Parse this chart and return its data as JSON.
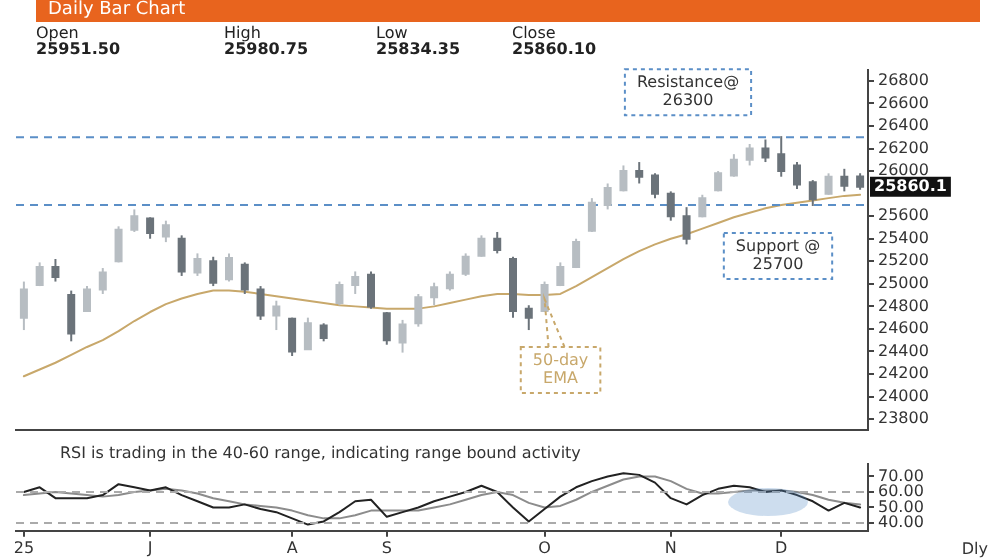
{
  "chart_data": [
    {
      "type": "candlestick",
      "title": "Daily Bar Chart",
      "colors": [
        "#b7bdc2",
        "#b7bdc2",
        "#6b737a",
        "#6b737a",
        "#b7bdc2",
        "#b7bdc2",
        "#b7bdc2",
        "#b7bdc2",
        "#6b737a",
        "#b7bdc2",
        "#6b737a",
        "#b7bdc2",
        "#6b737a",
        "#b7bdc2",
        "#6b737a",
        "#6b737a",
        "#b7bdc2",
        "#6b737a",
        "#b7bdc2",
        "#6b737a",
        "#b7bdc2",
        "#b7bdc2",
        "#6b737a",
        "#6b737a",
        "#b7bdc2",
        "#b7bdc2",
        "#b7bdc2",
        "#b7bdc2",
        "#b7bdc2",
        "#b7bdc2",
        "#6b737a",
        "#6b737a",
        "#6b737a",
        "#b7bdc2",
        "#b7bdc2",
        "#b7bdc2",
        "#b7bdc2",
        "#b7bdc2",
        "#b7bdc2",
        "#6b737a",
        "#6b737a",
        "#6b737a",
        "#6b737a",
        "#b7bdc2",
        "#b7bdc2",
        "#b7bdc2",
        "#b7bdc2",
        "#6b737a",
        "#6b737a",
        "#6b737a",
        "#6b737a",
        "#b7bdc2",
        "#6b737a",
        "#6b737a"
      ],
      "categories": [
        null,
        null,
        null,
        null,
        null,
        null,
        null,
        null,
        null,
        null,
        null,
        null,
        null,
        null,
        null,
        null,
        null,
        null,
        null,
        null,
        null,
        null,
        null,
        null,
        null,
        null,
        null,
        null,
        null,
        null,
        null,
        null,
        null,
        null,
        null,
        null,
        null,
        null,
        null,
        null,
        null,
        null,
        null,
        null,
        null,
        null,
        null,
        null,
        null,
        null,
        null,
        null,
        null,
        null
      ],
      "ohlc": [
        [
          24700,
          25020,
          24590,
          24950
        ],
        [
          24990,
          25190,
          24980,
          25150
        ],
        [
          25150,
          25220,
          25020,
          25060
        ],
        [
          24900,
          24940,
          24490,
          24560
        ],
        [
          24760,
          24980,
          24750,
          24950
        ],
        [
          24950,
          25140,
          24910,
          25100
        ],
        [
          25200,
          25510,
          25190,
          25480
        ],
        [
          25480,
          25660,
          25460,
          25600
        ],
        [
          25580,
          25590,
          25400,
          25450
        ],
        [
          25420,
          25560,
          25370,
          25520
        ],
        [
          25400,
          25430,
          25070,
          25110
        ],
        [
          25100,
          25270,
          25070,
          25220
        ],
        [
          25200,
          25240,
          24980,
          25010
        ],
        [
          25040,
          25270,
          25020,
          25230
        ],
        [
          25170,
          25190,
          24910,
          24950
        ],
        [
          24950,
          24980,
          24680,
          24720
        ],
        [
          24720,
          24850,
          24590,
          24800
        ],
        [
          24690,
          24700,
          24360,
          24400
        ],
        [
          24420,
          24700,
          24420,
          24650
        ],
        [
          24630,
          24650,
          24490,
          24520
        ],
        [
          24830,
          25020,
          24810,
          24990
        ],
        [
          24990,
          25110,
          24910,
          25060
        ],
        [
          25080,
          25110,
          24780,
          24800
        ],
        [
          24740,
          24750,
          24460,
          24500
        ],
        [
          24480,
          24680,
          24390,
          24640
        ],
        [
          24650,
          24910,
          24620,
          24880
        ],
        [
          24880,
          25010,
          24810,
          24970
        ],
        [
          24960,
          25110,
          24940,
          25080
        ],
        [
          25090,
          25270,
          25070,
          25240
        ],
        [
          25250,
          25430,
          25240,
          25400
        ],
        [
          25400,
          25460,
          25270,
          25300
        ],
        [
          25220,
          25240,
          24700,
          24760
        ],
        [
          24780,
          24810,
          24590,
          24700
        ],
        [
          24760,
          25020,
          24750,
          24990
        ],
        [
          24990,
          25190,
          24980,
          25150
        ],
        [
          25150,
          25400,
          25140,
          25370
        ],
        [
          25470,
          25760,
          25460,
          25720
        ],
        [
          25700,
          25890,
          25660,
          25850
        ],
        [
          25830,
          26050,
          25820,
          26000
        ],
        [
          26000,
          26080,
          25890,
          25950
        ],
        [
          25960,
          25980,
          25760,
          25800
        ],
        [
          25800,
          25820,
          25560,
          25600
        ],
        [
          25600,
          25680,
          25350,
          25400
        ],
        [
          25600,
          25790,
          25590,
          25760
        ],
        [
          25830,
          26000,
          25820,
          25980
        ],
        [
          25960,
          26150,
          25950,
          26100
        ],
        [
          26100,
          26240,
          26050,
          26200
        ],
        [
          26200,
          26280,
          26080,
          26120
        ],
        [
          26150,
          26310,
          25950,
          26000
        ],
        [
          26050,
          26080,
          25840,
          25880
        ],
        [
          25900,
          25920,
          25690,
          25750
        ],
        [
          25800,
          25980,
          25790,
          25950
        ],
        [
          25950,
          26020,
          25820,
          25870
        ],
        [
          25951.5,
          25980.75,
          25834.35,
          25860.1
        ]
      ],
      "series": [
        {
          "type": "line",
          "name": "50-day EMA",
          "color": "#c8a86b",
          "values": [
            24180,
            24240,
            24300,
            24370,
            24440,
            24500,
            24580,
            24670,
            24750,
            24820,
            24870,
            24910,
            24940,
            24940,
            24930,
            24910,
            24890,
            24870,
            24850,
            24830,
            24810,
            24800,
            24790,
            24780,
            24780,
            24780,
            24800,
            24830,
            24860,
            24890,
            24910,
            24910,
            24900,
            24900,
            24910,
            24980,
            25060,
            25140,
            25220,
            25290,
            25350,
            25400,
            25440,
            25490,
            25540,
            25590,
            25630,
            25670,
            25700,
            25720,
            25740,
            25760,
            25780,
            25790
          ]
        }
      ],
      "ylim": [
        23700,
        26900
      ],
      "yticks": [
        23800,
        24000,
        24200,
        24400,
        24600,
        24800,
        25000,
        25200,
        25400,
        25600,
        26000,
        26200,
        26400,
        26600,
        26800
      ],
      "ref_lines": [
        {
          "axis": "y",
          "value": 26300,
          "label": "Resistance@ 26300",
          "color": "#5b8fc7",
          "line_style": "dashed"
        },
        {
          "axis": "y",
          "value": 25700,
          "label": "Support @ 25700",
          "color": "#5b8fc7",
          "line_style": "dashed"
        }
      ],
      "annotations": [
        "Open",
        "25951.50",
        "High",
        "25980.75",
        "Low",
        "25834.35",
        "Close",
        "25860.10",
        "25860.1"
      ],
      "tick_labels": "y",
      "legend": false,
      "grid": false,
      "marker": "none"
    },
    {
      "type": "line",
      "categories": [
        "25",
        null,
        null,
        null,
        null,
        null,
        null,
        null,
        "J",
        null,
        null,
        null,
        null,
        null,
        null,
        null,
        null,
        "A",
        null,
        null,
        null,
        null,
        null,
        "S",
        null,
        null,
        null,
        null,
        null,
        null,
        null,
        null,
        null,
        "O",
        null,
        null,
        null,
        null,
        null,
        null,
        null,
        "N",
        null,
        null,
        null,
        null,
        null,
        null,
        "D",
        null,
        null,
        null,
        null,
        null
      ],
      "series": [
        {
          "color": "#222222",
          "values": [
            60,
            63,
            56,
            56,
            56,
            58,
            65,
            63,
            61,
            63,
            58,
            54,
            50,
            50,
            52,
            49,
            47,
            43,
            39,
            41,
            47,
            54,
            55,
            44,
            47,
            50,
            54,
            57,
            60,
            64,
            60,
            50,
            41,
            49,
            57,
            63,
            67,
            70,
            72,
            71,
            66,
            56,
            52,
            58,
            62,
            64,
            63,
            60,
            61,
            58,
            54,
            48,
            53,
            50
          ]
        },
        {
          "color": "#8c8c8c",
          "values": [
            58,
            59,
            60,
            59,
            58,
            57,
            58,
            60,
            61,
            62,
            61,
            59,
            56,
            54,
            52,
            51,
            50,
            48,
            45,
            43,
            43,
            45,
            48,
            48,
            48,
            48,
            50,
            52,
            55,
            58,
            60,
            58,
            53,
            50,
            51,
            55,
            60,
            64,
            68,
            70,
            70,
            67,
            62,
            59,
            59,
            60,
            61,
            61,
            61,
            60,
            58,
            55,
            53,
            52
          ]
        }
      ],
      "ylim": [
        35,
        78
      ],
      "yticks": [
        {
          "value": 40,
          "label": "40.00"
        },
        {
          "value": 50,
          "label": "50.00"
        },
        {
          "value": 60,
          "label": "60.00"
        },
        {
          "value": 70,
          "label": "70.00"
        }
      ],
      "ref_lines": [
        {
          "axis": "y",
          "value": 40,
          "color": "#aaaaaa",
          "line_style": "dashed"
        },
        {
          "axis": "y",
          "value": 60,
          "color": "#aaaaaa",
          "line_style": "dashed"
        }
      ],
      "annotations": [
        "RSI is trading in the 40-60 range, indicating range bound activity",
        "Dly"
      ],
      "legend": false,
      "grid": false,
      "marker": "none"
    }
  ]
}
